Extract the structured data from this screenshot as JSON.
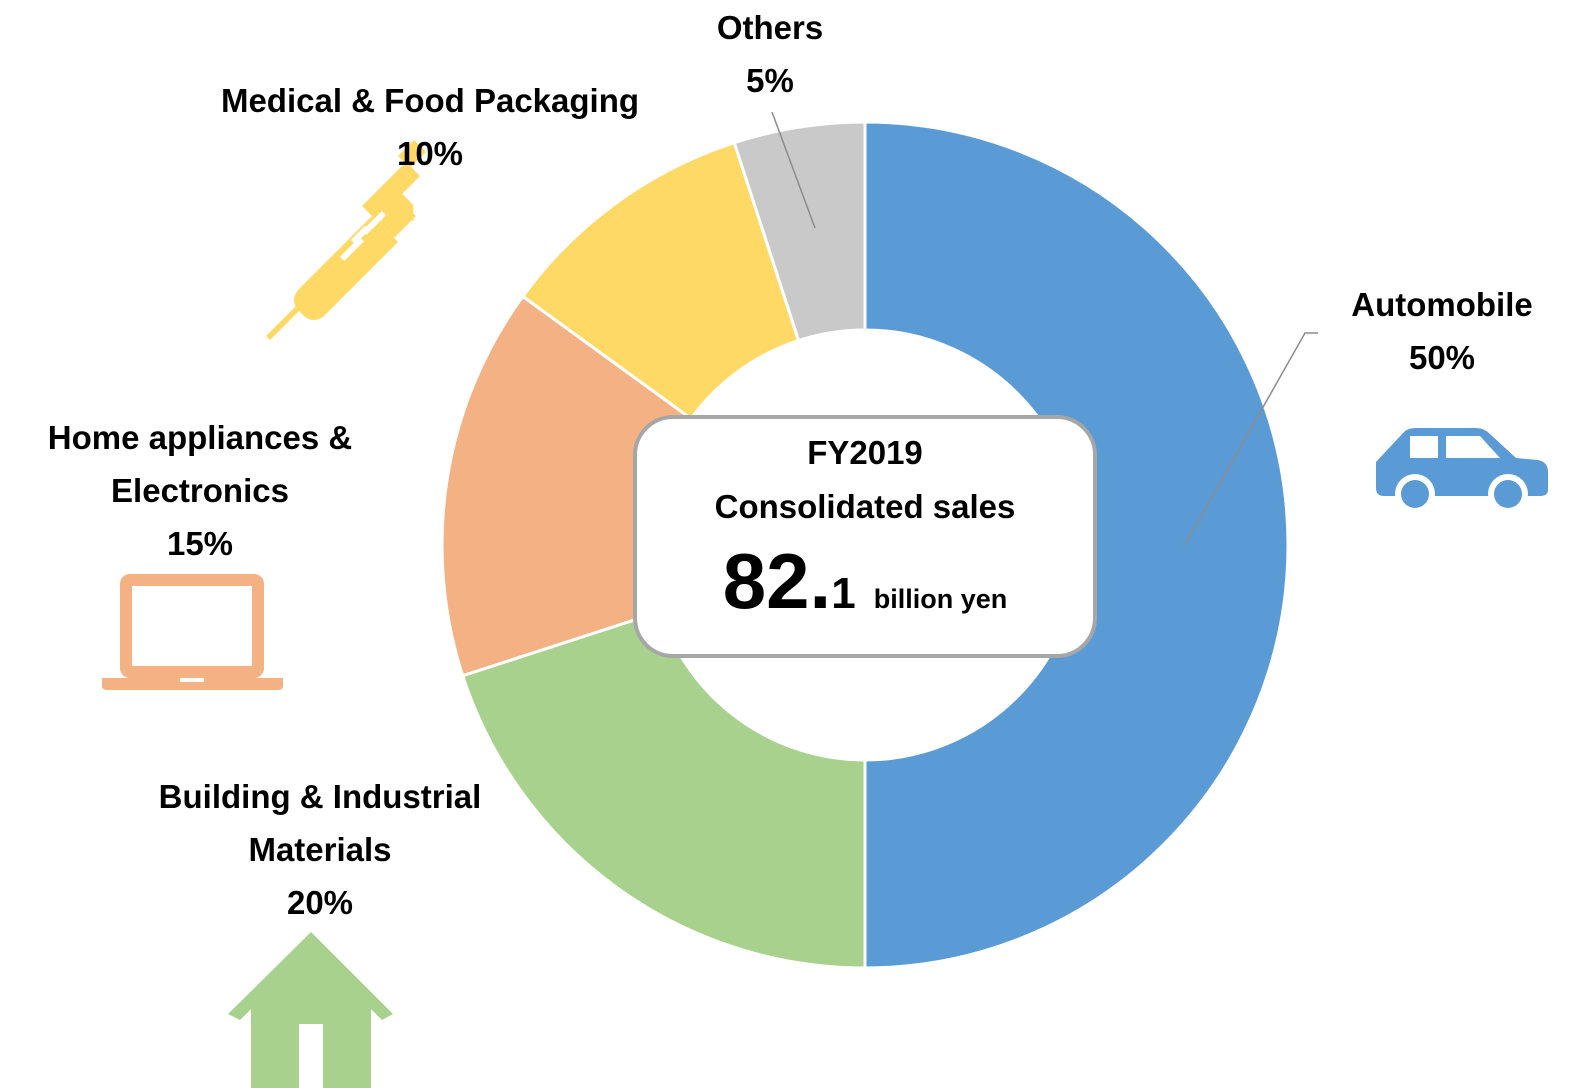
{
  "chart_data": {
    "type": "donut",
    "categories": [
      "Automobile",
      "Building & Industrial Materials",
      "Home appliances & Electronics",
      "Medical & Food Packaging",
      "Others"
    ],
    "values": [
      50,
      20,
      15,
      10,
      5
    ],
    "value_labels": [
      "50%",
      "20%",
      "15%",
      "10%",
      "5%"
    ],
    "colors": [
      "#5b9bd5",
      "#a9d18e",
      "#f4b183",
      "#ffd966",
      "#c9c9c9"
    ],
    "center_text": {
      "period": "FY2019",
      "caption": "Consolidated sales",
      "value_major": "82.",
      "value_minor": "1",
      "unit": "billion yen"
    }
  }
}
